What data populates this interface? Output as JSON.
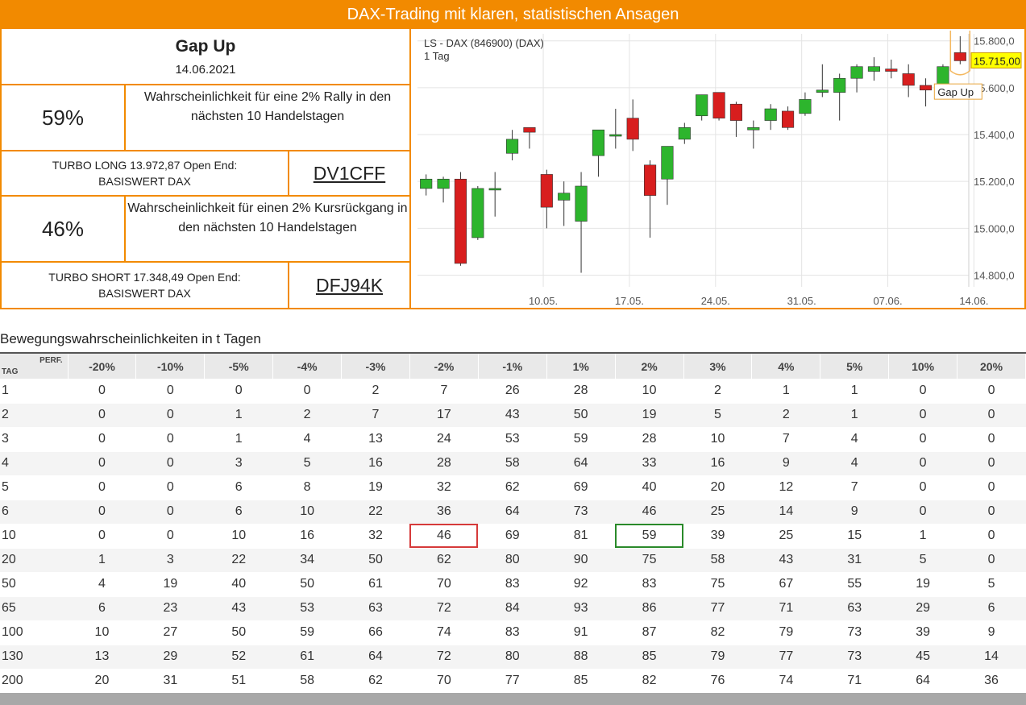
{
  "banner": {
    "title": "DAX-Trading mit klaren, statistischen Ansagen"
  },
  "signal": {
    "title": "Gap Up",
    "date": "14.06.2021"
  },
  "long": {
    "pct": "59%",
    "desc": "Wahrscheinlichkeit für eine 2% Rally in den nächsten 10 Handelstagen",
    "turbo_line1": "TURBO LONG 13.972,87 Open End:",
    "turbo_line2": "BASISWERT DAX",
    "wkn": "DV1CFF"
  },
  "short": {
    "pct": "46%",
    "desc": "Wahrscheinlichkeit für einen 2% Kursrückgang in den nächsten 10 Handelstagen",
    "turbo_line1": "TURBO SHORT 17.348,49 Open End:",
    "turbo_line2": "BASISWERT DAX",
    "wkn": "DFJ94K"
  },
  "chart_data": {
    "type": "candlestick",
    "title": "LS - DAX (846900) (DAX)",
    "subtitle": "1 Tag",
    "last_price": "15.715,00",
    "annotation": "Gap Up",
    "ylim": [
      14750,
      15830
    ],
    "y_ticks": [
      "15.800,0",
      "15.600,0",
      "15.400,0",
      "15.200,0",
      "15.000,0",
      "14.800,0"
    ],
    "y_tick_values": [
      15800,
      15600,
      15400,
      15200,
      15000,
      14800
    ],
    "x_ticks": [
      "10.05.",
      "17.05.",
      "24.05.",
      "31.05.",
      "07.06.",
      "14.06."
    ],
    "x_tick_index": [
      6.8,
      11.8,
      16.8,
      21.8,
      26.8,
      31.8
    ],
    "up_color": "#2db52d",
    "down_color": "#d81e1e",
    "grid": true,
    "candles": [
      {
        "o": 15170,
        "h": 15230,
        "l": 15140,
        "c": 15210
      },
      {
        "o": 15170,
        "h": 15220,
        "l": 15110,
        "c": 15210
      },
      {
        "o": 15210,
        "h": 15240,
        "l": 14840,
        "c": 14850
      },
      {
        "o": 14960,
        "h": 15180,
        "l": 14950,
        "c": 15170
      },
      {
        "o": 15170,
        "h": 15240,
        "l": 15050,
        "c": 15170
      },
      {
        "o": 15320,
        "h": 15420,
        "l": 15290,
        "c": 15380
      },
      {
        "o": 15430,
        "h": 15430,
        "l": 15340,
        "c": 15410
      },
      {
        "o": 15230,
        "h": 15250,
        "l": 15000,
        "c": 15090
      },
      {
        "o": 15120,
        "h": 15200,
        "l": 15010,
        "c": 15150
      },
      {
        "o": 15030,
        "h": 15240,
        "l": 14810,
        "c": 15180
      },
      {
        "o": 15310,
        "h": 15410,
        "l": 15220,
        "c": 15420
      },
      {
        "o": 15400,
        "h": 15510,
        "l": 15340,
        "c": 15400
      },
      {
        "o": 15470,
        "h": 15550,
        "l": 15330,
        "c": 15380
      },
      {
        "o": 15270,
        "h": 15290,
        "l": 14960,
        "c": 15140
      },
      {
        "o": 15210,
        "h": 15350,
        "l": 15100,
        "c": 15350
      },
      {
        "o": 15380,
        "h": 15450,
        "l": 15360,
        "c": 15430
      },
      {
        "o": 15480,
        "h": 15570,
        "l": 15460,
        "c": 15570
      },
      {
        "o": 15580,
        "h": 15580,
        "l": 15460,
        "c": 15470
      },
      {
        "o": 15530,
        "h": 15540,
        "l": 15390,
        "c": 15460
      },
      {
        "o": 15420,
        "h": 15460,
        "l": 15340,
        "c": 15430
      },
      {
        "o": 15460,
        "h": 15530,
        "l": 15420,
        "c": 15510
      },
      {
        "o": 15500,
        "h": 15520,
        "l": 15420,
        "c": 15430
      },
      {
        "o": 15490,
        "h": 15580,
        "l": 15480,
        "c": 15550
      },
      {
        "o": 15580,
        "h": 15700,
        "l": 15560,
        "c": 15590
      },
      {
        "o": 15580,
        "h": 15660,
        "l": 15460,
        "c": 15640
      },
      {
        "o": 15640,
        "h": 15700,
        "l": 15580,
        "c": 15690
      },
      {
        "o": 15670,
        "h": 15730,
        "l": 15630,
        "c": 15690
      },
      {
        "o": 15680,
        "h": 15720,
        "l": 15640,
        "c": 15670
      },
      {
        "o": 15660,
        "h": 15700,
        "l": 15560,
        "c": 15610
      },
      {
        "o": 15610,
        "h": 15640,
        "l": 15520,
        "c": 15590
      },
      {
        "o": 15600,
        "h": 15700,
        "l": 15590,
        "c": 15690
      },
      {
        "o": 15750,
        "h": 15820,
        "l": 15700,
        "c": 15715
      }
    ]
  },
  "table": {
    "title": "Bewegungswahrscheinlichkeiten in t Tagen",
    "corner_perf": "PERF.",
    "corner_tag": "TAG",
    "headers": [
      "-20%",
      "-10%",
      "-5%",
      "-4%",
      "-3%",
      "-2%",
      "-1%",
      "1%",
      "2%",
      "3%",
      "4%",
      "5%",
      "10%",
      "20%"
    ],
    "rows": [
      {
        "tag": "1",
        "values": [
          "0",
          "0",
          "0",
          "0",
          "2",
          "7",
          "26",
          "28",
          "10",
          "2",
          "1",
          "1",
          "0",
          "0"
        ]
      },
      {
        "tag": "2",
        "values": [
          "0",
          "0",
          "1",
          "2",
          "7",
          "17",
          "43",
          "50",
          "19",
          "5",
          "2",
          "1",
          "0",
          "0"
        ]
      },
      {
        "tag": "3",
        "values": [
          "0",
          "0",
          "1",
          "4",
          "13",
          "24",
          "53",
          "59",
          "28",
          "10",
          "7",
          "4",
          "0",
          "0"
        ]
      },
      {
        "tag": "4",
        "values": [
          "0",
          "0",
          "3",
          "5",
          "16",
          "28",
          "58",
          "64",
          "33",
          "16",
          "9",
          "4",
          "0",
          "0"
        ]
      },
      {
        "tag": "5",
        "values": [
          "0",
          "0",
          "6",
          "8",
          "19",
          "32",
          "62",
          "69",
          "40",
          "20",
          "12",
          "7",
          "0",
          "0"
        ]
      },
      {
        "tag": "6",
        "values": [
          "0",
          "0",
          "6",
          "10",
          "22",
          "36",
          "64",
          "73",
          "46",
          "25",
          "14",
          "9",
          "0",
          "0"
        ]
      },
      {
        "tag": "10",
        "values": [
          "0",
          "0",
          "10",
          "16",
          "32",
          "46",
          "69",
          "81",
          "59",
          "39",
          "25",
          "15",
          "1",
          "0"
        ]
      },
      {
        "tag": "20",
        "values": [
          "1",
          "3",
          "22",
          "34",
          "50",
          "62",
          "80",
          "90",
          "75",
          "58",
          "43",
          "31",
          "5",
          "0"
        ]
      },
      {
        "tag": "50",
        "values": [
          "4",
          "19",
          "40",
          "50",
          "61",
          "70",
          "83",
          "92",
          "83",
          "75",
          "67",
          "55",
          "19",
          "5"
        ]
      },
      {
        "tag": "65",
        "values": [
          "6",
          "23",
          "43",
          "53",
          "63",
          "72",
          "84",
          "93",
          "86",
          "77",
          "71",
          "63",
          "29",
          "6"
        ]
      },
      {
        "tag": "100",
        "values": [
          "10",
          "27",
          "50",
          "59",
          "66",
          "74",
          "83",
          "91",
          "87",
          "82",
          "79",
          "73",
          "39",
          "9"
        ]
      },
      {
        "tag": "130",
        "values": [
          "13",
          "29",
          "52",
          "61",
          "64",
          "72",
          "80",
          "88",
          "85",
          "79",
          "77",
          "73",
          "45",
          "14"
        ]
      },
      {
        "tag": "200",
        "values": [
          "20",
          "31",
          "51",
          "58",
          "62",
          "70",
          "77",
          "85",
          "82",
          "76",
          "74",
          "71",
          "64",
          "36"
        ]
      }
    ],
    "highlight": {
      "row_tag": "10",
      "red_col": "-2%",
      "green_col": "2%"
    }
  }
}
